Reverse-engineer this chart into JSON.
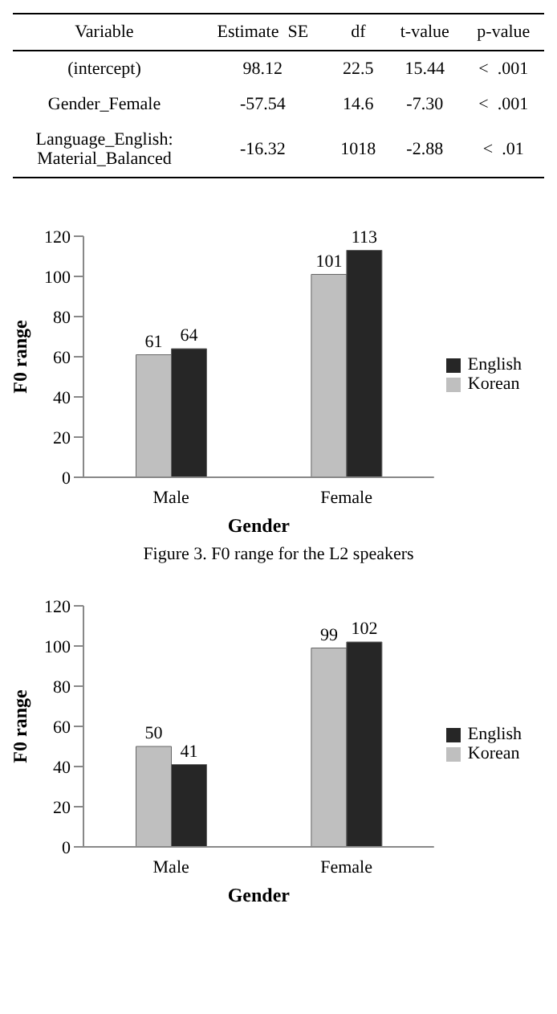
{
  "chart_data": [
    {
      "type": "other",
      "annotations": [
        "Variable",
        "Estimate  SE",
        "df",
        "t-value",
        "p-value",
        "(intercept)",
        "98.12",
        "22.5",
        "15.44",
        "<  .001",
        "Gender_Female",
        "-57.54",
        "14.6",
        "-7.30",
        "<  .001",
        "Language_English: Material_Balanced",
        "-16.32",
        "1018",
        "-2.88",
        "<  .01"
      ]
    },
    {
      "type": "bar",
      "title": "Figure 3. F0 range for the L2 speakers",
      "xlabel": "Gender",
      "ylabel": "F0 range",
      "categories": [
        "Male",
        "Female"
      ],
      "series": [
        {
          "name": "Korean",
          "color": "#bfbfbf",
          "values": [
            61,
            101
          ]
        },
        {
          "name": "English",
          "color": "#262626",
          "values": [
            64,
            113
          ]
        }
      ],
      "ylim": [
        0,
        120
      ],
      "yticks": [
        0,
        20,
        40,
        60,
        80,
        100,
        120
      ],
      "legend": "right",
      "data_labels": true
    },
    {
      "type": "bar",
      "xlabel": "Gender",
      "ylabel": "F0 range",
      "categories": [
        "Male",
        "Female"
      ],
      "series": [
        {
          "name": "Korean",
          "color": "#bfbfbf",
          "values": [
            50,
            99
          ]
        },
        {
          "name": "English",
          "color": "#262626",
          "values": [
            41,
            102
          ]
        }
      ],
      "ylim": [
        0,
        120
      ],
      "yticks": [
        0,
        20,
        40,
        60,
        80,
        100,
        120
      ],
      "legend": "right",
      "data_labels": true
    }
  ]
}
